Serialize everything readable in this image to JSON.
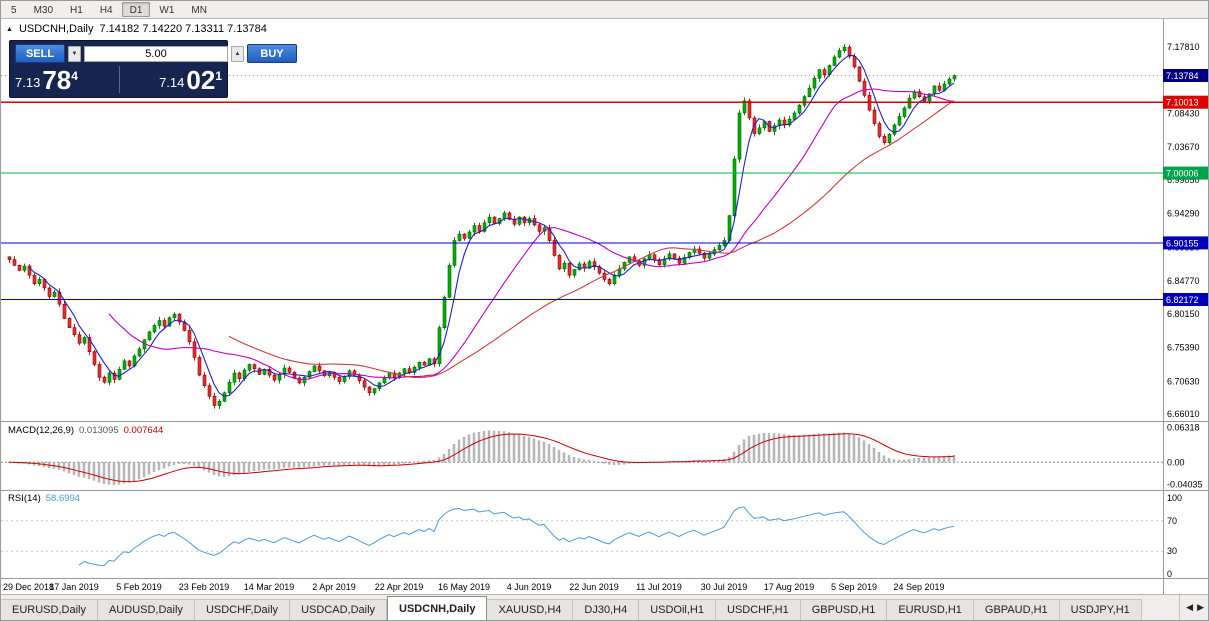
{
  "toolbar": {
    "timeframes": [
      "5",
      "M30",
      "H1",
      "H4",
      "D1",
      "W1",
      "MN"
    ],
    "active_timeframe": "D1"
  },
  "chart": {
    "symbol_title": "USDCNH,Daily",
    "ohlc_line": "7.14182 7.14220 7.13311 7.13784",
    "marker_icon": "▲"
  },
  "trade_panel": {
    "sell_label": "SELL",
    "buy_label": "BUY",
    "volume": "5.00",
    "volume_down_icon": "▼",
    "volume_up_icon": "▲",
    "sell_price": {
      "head": "7.13",
      "big": "78",
      "sup": "4"
    },
    "buy_price": {
      "head": "7.14",
      "big": "02",
      "sup": "1"
    }
  },
  "price_axis": {
    "ticks": [
      "7.17810",
      "7.08430",
      "7.03670",
      "6.99050",
      "6.94290",
      "6.89530",
      "6.84770",
      "6.80150",
      "6.75390",
      "6.70630",
      "6.66010"
    ],
    "badges": [
      {
        "label": "7.13784",
        "value": 7.13784,
        "color": "#000080",
        "name": "bid-price-badge"
      },
      {
        "label": "7.10013",
        "value": 7.10013,
        "color": "#dd0000",
        "name": "red-hline-badge"
      },
      {
        "label": "7.00006",
        "value": 7.00006,
        "color": "#00a14b",
        "name": "green-hline-badge"
      },
      {
        "label": "6.90155",
        "value": 6.90155,
        "color": "#0000bb",
        "name": "blue-hline-badge-1"
      },
      {
        "label": "6.82172",
        "value": 6.82172,
        "color": "#0000bb",
        "name": "blue-hline-badge-2"
      }
    ]
  },
  "macd_panel": {
    "title": "MACD(12,26,9)",
    "value_macd": "0.013095",
    "value_signal": "0.007644",
    "ticks": [
      {
        "label": "0.06318",
        "value": 0.06318
      },
      {
        "label": "0.00",
        "value": 0
      },
      {
        "label": "-0.04035",
        "value": -0.04035
      }
    ]
  },
  "rsi_panel": {
    "title": "RSI(14)",
    "value": "58.6994",
    "ticks": [
      {
        "label": "100",
        "value": 100
      },
      {
        "label": "70",
        "value": 70
      },
      {
        "label": "30",
        "value": 30
      },
      {
        "label": "0",
        "value": 0
      }
    ],
    "levels": [
      70,
      30
    ]
  },
  "tabs": {
    "active": "USDCNH,Daily",
    "scroll_left_icon": "◀",
    "scroll_right_icon": "▶",
    "items": [
      "EURUSD,Daily",
      "AUDUSD,Daily",
      "USDCHF,Daily",
      "USDCAD,Daily",
      "USDCNH,Daily",
      "XAUUSD,H4",
      "DJ30,H4",
      "USDOil,H1",
      "USDCHF,H1",
      "GBPUSD,H1",
      "EURUSD,H1",
      "GBPAUD,H1",
      "USDJPY,H1"
    ]
  },
  "chart_data": {
    "type": "candlestick",
    "symbol": "USDCNH",
    "timeframe": "Daily",
    "current_ohlc": {
      "open": 7.14182,
      "high": 7.1422,
      "low": 7.13311,
      "close": 7.13784
    },
    "price_range": [
      6.6502,
      7.2148
    ],
    "x_labels": [
      "29 Dec 2018",
      "17 Jan 2019",
      "5 Feb 2019",
      "23 Feb 2019",
      "14 Mar 2019",
      "2 Apr 2019",
      "22 Apr 2019",
      "16 May 2019",
      "4 Jun 2019",
      "22 Jun 2019",
      "11 Jul 2019",
      "30 Jul 2019",
      "17 Aug 2019",
      "5 Sep 2019",
      "24 Sep 2019"
    ],
    "candles_per_label": 13,
    "closes": [
      6.878,
      6.87,
      6.863,
      6.869,
      6.856,
      6.844,
      6.85,
      6.838,
      6.826,
      6.832,
      6.815,
      6.795,
      6.782,
      6.772,
      6.76,
      6.768,
      6.748,
      6.73,
      6.712,
      6.705,
      6.718,
      6.709,
      6.723,
      6.735,
      6.728,
      6.742,
      6.752,
      6.765,
      6.776,
      6.785,
      6.792,
      6.784,
      6.796,
      6.801,
      6.79,
      6.778,
      6.762,
      6.74,
      6.715,
      6.7,
      6.685,
      6.672,
      6.678,
      6.69,
      6.705,
      6.718,
      6.71,
      6.722,
      6.73,
      6.724,
      6.716,
      6.723,
      6.715,
      6.708,
      6.716,
      6.725,
      6.719,
      6.711,
      6.704,
      6.712,
      6.72,
      6.728,
      6.721,
      6.714,
      6.719,
      6.712,
      6.706,
      6.713,
      6.721,
      6.715,
      6.707,
      6.698,
      6.69,
      6.696,
      6.704,
      6.711,
      6.718,
      6.712,
      6.718,
      6.724,
      6.719,
      6.726,
      6.733,
      6.729,
      6.738,
      6.731,
      6.782,
      6.825,
      6.87,
      6.905,
      6.914,
      6.908,
      6.917,
      6.926,
      6.918,
      6.93,
      6.938,
      6.929,
      6.936,
      6.944,
      6.935,
      6.928,
      6.938,
      6.93,
      6.936,
      6.927,
      6.918,
      6.923,
      6.905,
      6.884,
      6.865,
      6.873,
      6.856,
      6.864,
      6.872,
      6.866,
      6.875,
      6.868,
      6.859,
      6.85,
      6.844,
      6.856,
      6.865,
      6.874,
      6.882,
      6.876,
      6.87,
      6.879,
      6.885,
      6.878,
      6.871,
      6.879,
      6.886,
      6.88,
      6.873,
      6.881,
      6.888,
      6.893,
      6.887,
      6.88,
      6.886,
      6.892,
      6.898,
      6.905,
      6.94,
      7.02,
      7.085,
      7.102,
      7.078,
      7.056,
      7.064,
      7.073,
      7.059,
      7.067,
      7.075,
      7.068,
      7.076,
      7.085,
      7.096,
      7.108,
      7.12,
      7.134,
      7.146,
      7.139,
      7.152,
      7.164,
      7.173,
      7.178,
      7.165,
      7.15,
      7.13,
      7.11,
      7.089,
      7.07,
      7.052,
      7.043,
      7.055,
      7.068,
      7.08,
      7.092,
      7.106,
      7.115,
      7.108,
      7.102,
      7.112,
      7.123,
      7.117,
      7.126,
      7.133,
      7.1378
    ],
    "overlays": {
      "hlines": [
        {
          "price": 7.10013,
          "color": "#dd0000"
        },
        {
          "price": 7.00006,
          "color": "#00b432"
        },
        {
          "price": 6.90155,
          "color": "#0000c8"
        },
        {
          "price": 6.82172,
          "color": "#0000c8"
        }
      ],
      "bid_line": {
        "price": 7.13784,
        "color": "#9090b8"
      },
      "moving_averages": [
        {
          "period": 5,
          "color": "#2020c0"
        },
        {
          "period": 21,
          "color": "#c000c0"
        },
        {
          "period": 45,
          "color": "#c84040"
        }
      ]
    },
    "indicators": [
      {
        "type": "MACD",
        "params": [
          12,
          26,
          9
        ],
        "current": [
          0.013095,
          0.007644
        ],
        "range": [
          -0.0466,
          0.0713
        ]
      },
      {
        "type": "RSI",
        "params": [
          14
        ],
        "current": 58.6994,
        "range": [
          0,
          100
        ],
        "levels": [
          70,
          30
        ]
      }
    ]
  }
}
